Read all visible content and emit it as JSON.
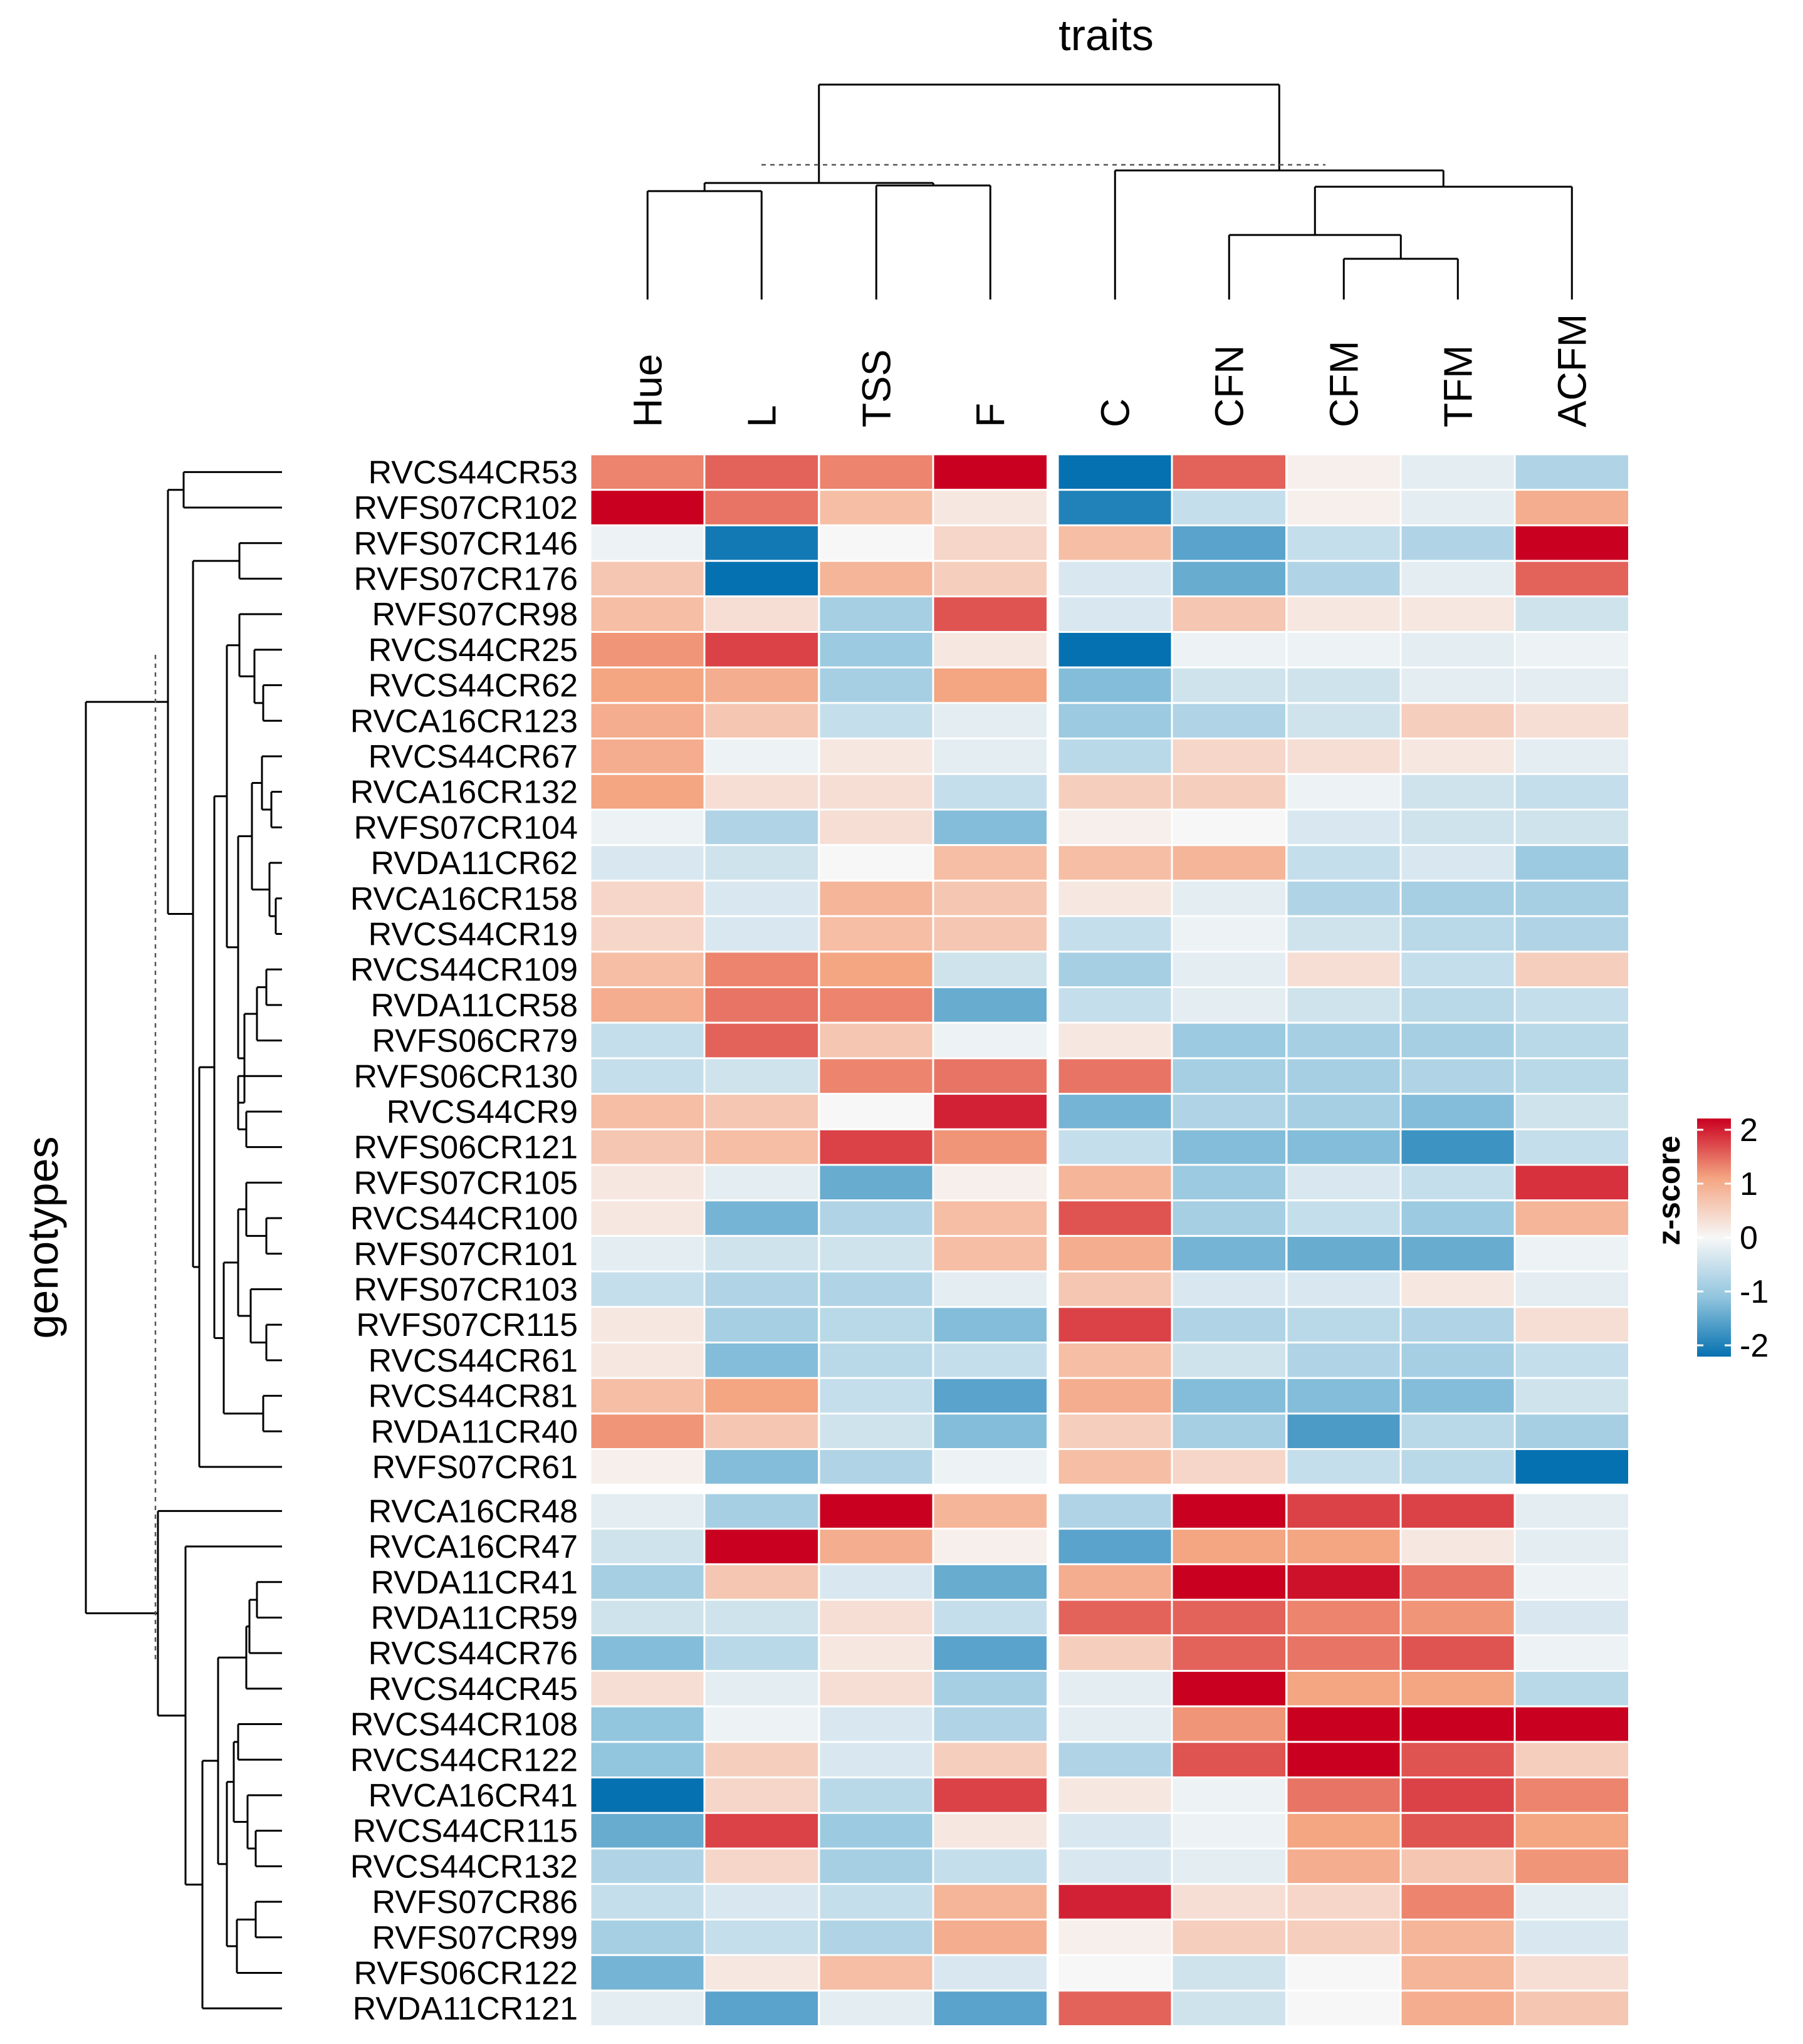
{
  "chart_data": {
    "type": "heatmap",
    "title": "traits",
    "ylabel": "genotypes",
    "columns": [
      "Hue",
      "L",
      "TSS",
      "F",
      "C",
      "CFN",
      "CFM",
      "TFM",
      "ACFM"
    ],
    "column_groups": [
      [
        0,
        1,
        2,
        3
      ],
      [
        4,
        5,
        6,
        7,
        8
      ]
    ],
    "rows": [
      "RVCS44CR53",
      "RVFS07CR102",
      "RVFS07CR146",
      "RVFS07CR176",
      "RVFS07CR98",
      "RVCS44CR25",
      "RVCS44CR62",
      "RVCA16CR123",
      "RVCS44CR67",
      "RVCA16CR132",
      "RVFS07CR104",
      "RVDA11CR62",
      "RVCA16CR158",
      "RVCS44CR19",
      "RVCS44CR109",
      "RVDA11CR58",
      "RVFS06CR79",
      "RVFS06CR130",
      "RVCS44CR9",
      "RVFS06CR121",
      "RVFS07CR105",
      "RVCS44CR100",
      "RVFS07CR101",
      "RVFS07CR103",
      "RVFS07CR115",
      "RVCS44CR61",
      "RVCS44CR81",
      "RVDA11CR40",
      "RVFS07CR61",
      "RVCA16CR48",
      "RVCA16CR47",
      "RVDA11CR41",
      "RVDA11CR59",
      "RVCS44CR76",
      "RVCS44CR45",
      "RVCS44CR108",
      "RVCS44CR122",
      "RVCA16CR41",
      "RVCS44CR115",
      "RVCS44CR132",
      "RVFS07CR86",
      "RVFS07CR99",
      "RVFS06CR122",
      "RVDA11CR121"
    ],
    "row_split_after": 28,
    "values": [
      [
        1.2,
        1.4,
        1.2,
        2.0,
        -2.0,
        1.4,
        0.1,
        -0.2,
        -0.7
      ],
      [
        2.0,
        1.3,
        0.7,
        0.2,
        -1.8,
        -0.5,
        0.1,
        -0.2,
        0.9
      ],
      [
        -0.1,
        -1.9,
        0.0,
        0.4,
        0.7,
        -1.4,
        -0.5,
        -0.7,
        2.0
      ],
      [
        0.6,
        -2.0,
        0.8,
        0.5,
        -0.3,
        -1.3,
        -0.7,
        -0.2,
        1.4
      ],
      [
        0.7,
        0.3,
        -0.8,
        1.5,
        -0.3,
        0.6,
        0.2,
        0.2,
        -0.4
      ],
      [
        1.1,
        1.6,
        -0.9,
        0.2,
        -2.0,
        -0.1,
        -0.1,
        -0.2,
        -0.1
      ],
      [
        1.0,
        0.9,
        -0.8,
        1.0,
        -1.1,
        -0.4,
        -0.4,
        -0.2,
        -0.2
      ],
      [
        0.9,
        0.6,
        -0.5,
        -0.2,
        -0.9,
        -0.7,
        -0.4,
        0.5,
        0.3
      ],
      [
        0.9,
        -0.1,
        0.2,
        -0.2,
        -0.6,
        0.4,
        0.3,
        0.2,
        -0.2
      ],
      [
        1.0,
        0.3,
        0.3,
        -0.5,
        0.5,
        0.5,
        -0.1,
        -0.4,
        -0.5
      ],
      [
        -0.1,
        -0.7,
        0.3,
        -1.1,
        0.1,
        0.0,
        -0.3,
        -0.4,
        -0.4
      ],
      [
        -0.3,
        -0.4,
        0.0,
        0.7,
        0.7,
        0.8,
        -0.5,
        -0.3,
        -0.9
      ],
      [
        0.4,
        -0.3,
        0.8,
        0.6,
        0.2,
        -0.2,
        -0.7,
        -0.8,
        -0.8
      ],
      [
        0.4,
        -0.3,
        0.7,
        0.6,
        -0.5,
        -0.1,
        -0.4,
        -0.6,
        -0.7
      ],
      [
        0.7,
        1.2,
        1.0,
        -0.4,
        -0.8,
        -0.2,
        0.3,
        -0.5,
        0.5
      ],
      [
        0.9,
        1.3,
        1.2,
        -1.3,
        -0.5,
        -0.2,
        -0.4,
        -0.6,
        -0.5
      ],
      [
        -0.5,
        1.4,
        0.6,
        -0.1,
        0.2,
        -0.9,
        -0.8,
        -0.8,
        -0.6
      ],
      [
        -0.5,
        -0.4,
        1.2,
        1.3,
        1.3,
        -0.8,
        -0.8,
        -0.7,
        -0.6
      ],
      [
        0.7,
        0.6,
        0.0,
        1.8,
        -1.2,
        -0.7,
        -0.8,
        -1.1,
        -0.4
      ],
      [
        0.6,
        0.7,
        1.6,
        1.1,
        -0.5,
        -1.1,
        -1.1,
        -1.6,
        -0.5
      ],
      [
        0.2,
        -0.2,
        -1.3,
        0.1,
        0.8,
        -0.9,
        -0.3,
        -0.5,
        1.7
      ],
      [
        0.2,
        -1.2,
        -0.7,
        0.7,
        1.5,
        -0.8,
        -0.5,
        -0.9,
        0.8
      ],
      [
        -0.2,
        -0.4,
        -0.4,
        0.7,
        0.9,
        -1.2,
        -1.3,
        -1.3,
        -0.1
      ],
      [
        -0.5,
        -0.7,
        -0.7,
        -0.2,
        0.6,
        -0.3,
        -0.3,
        0.2,
        -0.2
      ],
      [
        0.2,
        -0.8,
        -0.6,
        -1.1,
        1.6,
        -0.7,
        -0.6,
        -0.7,
        0.3
      ],
      [
        0.2,
        -1.1,
        -0.6,
        -0.5,
        0.7,
        -0.4,
        -0.7,
        -0.8,
        -0.5
      ],
      [
        0.7,
        1.0,
        -0.5,
        -1.4,
        0.9,
        -1.1,
        -1.1,
        -1.1,
        -0.4
      ],
      [
        1.1,
        0.6,
        -0.4,
        -1.1,
        0.5,
        -0.8,
        -1.5,
        -0.6,
        -0.8
      ],
      [
        0.1,
        -1.1,
        -0.7,
        -0.1,
        0.7,
        0.4,
        -0.5,
        -0.6,
        -2.0
      ],
      [
        -0.2,
        -0.8,
        2.0,
        0.8,
        -0.7,
        2.0,
        1.6,
        1.6,
        -0.2
      ],
      [
        -0.4,
        2.0,
        0.9,
        0.1,
        -1.4,
        1.0,
        1.0,
        0.2,
        -0.2
      ],
      [
        -0.8,
        0.6,
        -0.3,
        -1.3,
        0.9,
        2.0,
        1.9,
        1.3,
        -0.1
      ],
      [
        -0.4,
        -0.4,
        0.3,
        -0.5,
        1.4,
        1.4,
        1.2,
        1.1,
        -0.3
      ],
      [
        -1.1,
        -0.6,
        0.2,
        -1.4,
        0.5,
        1.4,
        1.3,
        1.5,
        -0.1
      ],
      [
        0.3,
        -0.2,
        0.3,
        -0.8,
        -0.2,
        2.0,
        1.0,
        1.0,
        -0.6
      ],
      [
        -1.0,
        -0.1,
        -0.3,
        -0.7,
        -0.2,
        1.1,
        2.0,
        2.0,
        2.0
      ],
      [
        -1.0,
        0.5,
        -0.3,
        0.5,
        -0.7,
        1.5,
        2.0,
        1.5,
        0.5
      ],
      [
        -2.0,
        0.4,
        -0.6,
        1.6,
        0.2,
        -0.1,
        1.3,
        1.6,
        1.2
      ],
      [
        -1.3,
        1.6,
        -0.9,
        0.2,
        -0.3,
        -0.1,
        1.0,
        1.5,
        1.0
      ],
      [
        -0.7,
        0.4,
        -0.8,
        -0.5,
        -0.3,
        -0.2,
        0.9,
        0.6,
        1.1
      ],
      [
        -0.5,
        -0.3,
        -0.5,
        0.8,
        1.8,
        0.3,
        0.4,
        1.2,
        -0.2
      ],
      [
        -0.8,
        -0.5,
        -0.7,
        0.9,
        0.1,
        0.5,
        0.5,
        0.8,
        -0.3
      ],
      [
        -1.2,
        0.2,
        0.7,
        -0.3,
        0.0,
        -0.4,
        0.0,
        0.8,
        0.3
      ],
      [
        -0.2,
        -1.4,
        -0.2,
        -1.4,
        1.4,
        -0.4,
        0.0,
        0.9,
        0.6
      ]
    ],
    "color_scale": {
      "min": -2,
      "max": 2,
      "stops": [
        "#0571b0",
        "#92c5de",
        "#f7f7f7",
        "#f4a582",
        "#ca0020"
      ]
    },
    "legend": {
      "title": "z-score",
      "ticks": [
        "2",
        "1",
        "0",
        "-1",
        "-2"
      ],
      "position": "right"
    }
  }
}
